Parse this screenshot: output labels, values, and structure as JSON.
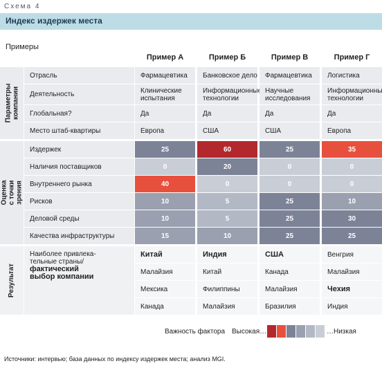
{
  "figure_label": "Схема 4",
  "title": "Индекс издержек места",
  "subtitle": "Примеры",
  "columns": [
    "Пример А",
    "Пример Б",
    "Пример В",
    "Пример Г"
  ],
  "parameters": {
    "section": "Параметры\nкомпании",
    "rows": [
      {
        "label": "Отрасль",
        "cells": [
          "Фармацевтика",
          "Банковское дело",
          "Фармацевтика",
          "Логистика"
        ]
      },
      {
        "label": "Деятельность",
        "cells": [
          "Клинические\nиспытания",
          "Информационные\nтехнологии",
          "Научные\nисследования",
          "Информационные\nтехнологии"
        ]
      },
      {
        "label": "Глобальная?",
        "cells": [
          "Да",
          "Да",
          "Да",
          "Да"
        ]
      },
      {
        "label": "Место штаб-квартиры",
        "cells": [
          "Европа",
          "США",
          "США",
          "Европа"
        ]
      }
    ]
  },
  "scores": {
    "section": "Оценка\nс точки зрения",
    "rows": [
      {
        "label": "Издержек",
        "values": [
          25,
          60,
          25,
          35
        ],
        "colors": [
          "#7d8397",
          "#b3282d",
          "#7d8397",
          "#e8503e"
        ]
      },
      {
        "label": "Наличия поставщиков",
        "values": [
          0,
          20,
          0,
          0
        ],
        "colors": [
          "#c9cdd6",
          "#7d8397",
          "#c9cdd6",
          "#c9cdd6"
        ]
      },
      {
        "label": "Внутреннего рынка",
        "values": [
          40,
          0,
          0,
          0
        ],
        "colors": [
          "#e8503e",
          "#c9cdd6",
          "#c9cdd6",
          "#c9cdd6"
        ]
      },
      {
        "label": "Рисков",
        "values": [
          10,
          5,
          25,
          10
        ],
        "colors": [
          "#9aa0af",
          "#b3b8c5",
          "#7d8397",
          "#9aa0af"
        ]
      },
      {
        "label": "Деловой среды",
        "values": [
          10,
          5,
          25,
          30
        ],
        "colors": [
          "#9aa0af",
          "#b3b8c5",
          "#7d8397",
          "#7d8397"
        ]
      },
      {
        "label": "Качества инфраструктуры",
        "values": [
          15,
          10,
          25,
          25
        ],
        "colors": [
          "#9aa0af",
          "#9aa0af",
          "#7d8397",
          "#7d8397"
        ]
      }
    ]
  },
  "results": {
    "section": "Результат",
    "label": "Наиболее привлека-\nтельные страны/",
    "label_bold": "фактический\nвыбор компании",
    "rows": [
      [
        {
          "text": "Китай",
          "bold": true
        },
        {
          "text": "Индия",
          "bold": true
        },
        {
          "text": "США",
          "bold": true
        },
        {
          "text": "Венгрия",
          "bold": false
        }
      ],
      [
        {
          "text": "Малайзия",
          "bold": false
        },
        {
          "text": "Китай",
          "bold": false
        },
        {
          "text": "Канада",
          "bold": false
        },
        {
          "text": "Малайзия",
          "bold": false
        }
      ],
      [
        {
          "text": "Мексика",
          "bold": false
        },
        {
          "text": "Филиппины",
          "bold": false
        },
        {
          "text": "Малайзия",
          "bold": false
        },
        {
          "text": "Чехия",
          "bold": true
        }
      ],
      [
        {
          "text": "Канада",
          "bold": false
        },
        {
          "text": "Малайзия",
          "bold": false
        },
        {
          "text": "Бразилия",
          "bold": false
        },
        {
          "text": "Индия",
          "bold": false
        }
      ]
    ]
  },
  "legend": {
    "title": "Важность фактора",
    "high": "Высокая…",
    "low": "…Низкая",
    "colors": [
      "#b3282d",
      "#e8503e",
      "#7d8397",
      "#9aa0af",
      "#b3b8c5",
      "#c9cdd6"
    ]
  },
  "source": "Источники: интервью; база данных по индексу издержек места; анализ MGI."
}
